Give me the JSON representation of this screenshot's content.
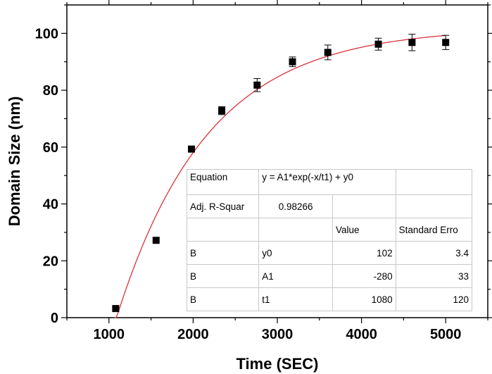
{
  "chart_data": {
    "type": "scatter",
    "xlabel": "Time (SEC)",
    "ylabel": "Domain Size (nm)",
    "xlim": [
      500,
      5500
    ],
    "ylim": [
      0,
      110
    ],
    "xticks": [
      1000,
      2000,
      3000,
      4000,
      5000
    ],
    "yticks": [
      0,
      20,
      40,
      60,
      80,
      100
    ],
    "x_tick_labels": [
      "1000",
      "2000",
      "3000",
      "4000",
      "5000"
    ],
    "y_tick_labels": [
      "0",
      "20",
      "40",
      "60",
      "80",
      "100"
    ],
    "grid": false,
    "series": [
      {
        "marker": "square",
        "color": "#000000",
        "x": [
          1080,
          1560,
          1980,
          2340,
          2760,
          3180,
          3600,
          4200,
          4600,
          5000
        ],
        "y": [
          3.2,
          27.2,
          59.3,
          72.8,
          81.8,
          90.0,
          93.3,
          96.2,
          96.8,
          96.8
        ],
        "error": [
          0,
          0,
          1.0,
          1.4,
          2.3,
          1.7,
          2.6,
          2.1,
          2.9,
          2.5
        ]
      }
    ],
    "fit": {
      "color": "#d9333f",
      "model": "y = A1*exp(-x/t1) + y0",
      "y0": 102,
      "A1": -280,
      "t1": 1080,
      "x_range": [
        1060,
        5000
      ]
    },
    "fit_table": {
      "equation_label": "Equation",
      "equation": "y = A1*exp(-x/t1) + y0",
      "adj_r_label": "Adj. R-Squar",
      "adj_r_value": "0.98266",
      "header_value": "Value",
      "header_error": "Standard Erro",
      "rows": [
        {
          "group": "B",
          "param": "y0",
          "value": "102",
          "error": "3.4"
        },
        {
          "group": "B",
          "param": "A1",
          "value": "-280",
          "error": "33"
        },
        {
          "group": "B",
          "param": "t1",
          "value": "1080",
          "error": "120"
        }
      ]
    }
  }
}
